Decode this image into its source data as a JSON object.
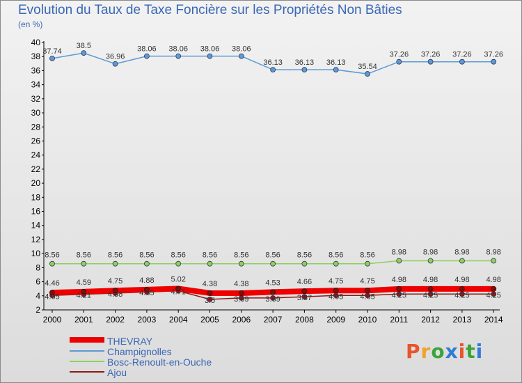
{
  "title": "Evolution du Taux de Taxe Foncière sur les Propriétés Non Bâties",
  "unit_label": "(en %)",
  "logo": {
    "text": "Proxiti",
    "colors": [
      "#e8542b",
      "#f0a22e",
      "#3aa43a",
      "#2f7bd6",
      "#e8542b",
      "#3aa43a",
      "#2f7bd6"
    ]
  },
  "chart_data": {
    "type": "line",
    "title": "Evolution du Taux de Taxe Foncière sur les Propriétés Non Bâties",
    "ylabel": "(en %)",
    "xlabel": "",
    "ylim": [
      2,
      40
    ],
    "yticks": [
      "2",
      "4",
      "6",
      "8",
      "10",
      "12",
      "14",
      "16",
      "18",
      "20",
      "22",
      "24",
      "26",
      "28",
      "30",
      "32",
      "34",
      "36",
      "38",
      "40"
    ],
    "categories": [
      "2000",
      "2001",
      "2002",
      "2003",
      "2004",
      "2005",
      "2006",
      "2007",
      "2008",
      "2009",
      "2010",
      "2011",
      "2012",
      "2013",
      "2014"
    ],
    "series": [
      {
        "name": "THEVRAY",
        "color": "#ee0000",
        "values": [
          4.46,
          4.59,
          4.75,
          4.88,
          5.02,
          4.38,
          4.38,
          4.53,
          4.66,
          4.75,
          4.75,
          4.98,
          4.98,
          4.98,
          4.98
        ],
        "labels": [
          "4.46",
          "4.59",
          "4.75",
          "4.88",
          "5.02",
          "4.38",
          "4.38",
          "4.53",
          "4.66",
          "4.75",
          "4.75",
          "4.98",
          "4.98",
          "4.98",
          "4.98"
        ]
      },
      {
        "name": "Champignolles",
        "color": "#5b9bd5",
        "values": [
          37.74,
          38.5,
          36.96,
          38.06,
          38.06,
          38.06,
          38.06,
          36.13,
          36.13,
          36.13,
          35.54,
          37.26,
          37.26,
          37.26,
          37.26
        ],
        "labels": [
          "37.74",
          "38.5",
          "36.96",
          "38.06",
          "38.06",
          "38.06",
          "38.06",
          "36.13",
          "36.13",
          "36.13",
          "35.54",
          "37.26",
          "37.26",
          "37.26",
          "37.26"
        ]
      },
      {
        "name": "Bosc-Renoult-en-Ouche",
        "color": "#8cd15a",
        "values": [
          8.56,
          8.56,
          8.56,
          8.56,
          8.56,
          8.56,
          8.56,
          8.56,
          8.56,
          8.56,
          8.56,
          8.98,
          8.98,
          8.98,
          8.98
        ],
        "labels": [
          "8.56",
          "8.56",
          "8.56",
          "8.56",
          "8.56",
          "8.56",
          "8.56",
          "8.56",
          "8.56",
          "8.56",
          "8.56",
          "8.98",
          "8.98",
          "8.98",
          "8.98"
        ]
      },
      {
        "name": "Ajou",
        "color": "#8b1a1a",
        "values": [
          4.05,
          4.21,
          4.38,
          4.55,
          4.71,
          3.5,
          3.69,
          3.69,
          3.87,
          4.05,
          4.05,
          4.25,
          4.25,
          4.25,
          4.25
        ],
        "labels": [
          "4.05",
          "4.21",
          "4.38",
          "4.55",
          "4.71",
          "3.5",
          "3.69",
          "3.69",
          "3.87",
          "4.05",
          "4.05",
          "4.25",
          "4.25",
          "4.25",
          "4.25"
        ]
      }
    ],
    "legend_position": "bottom-left",
    "grid": false
  }
}
